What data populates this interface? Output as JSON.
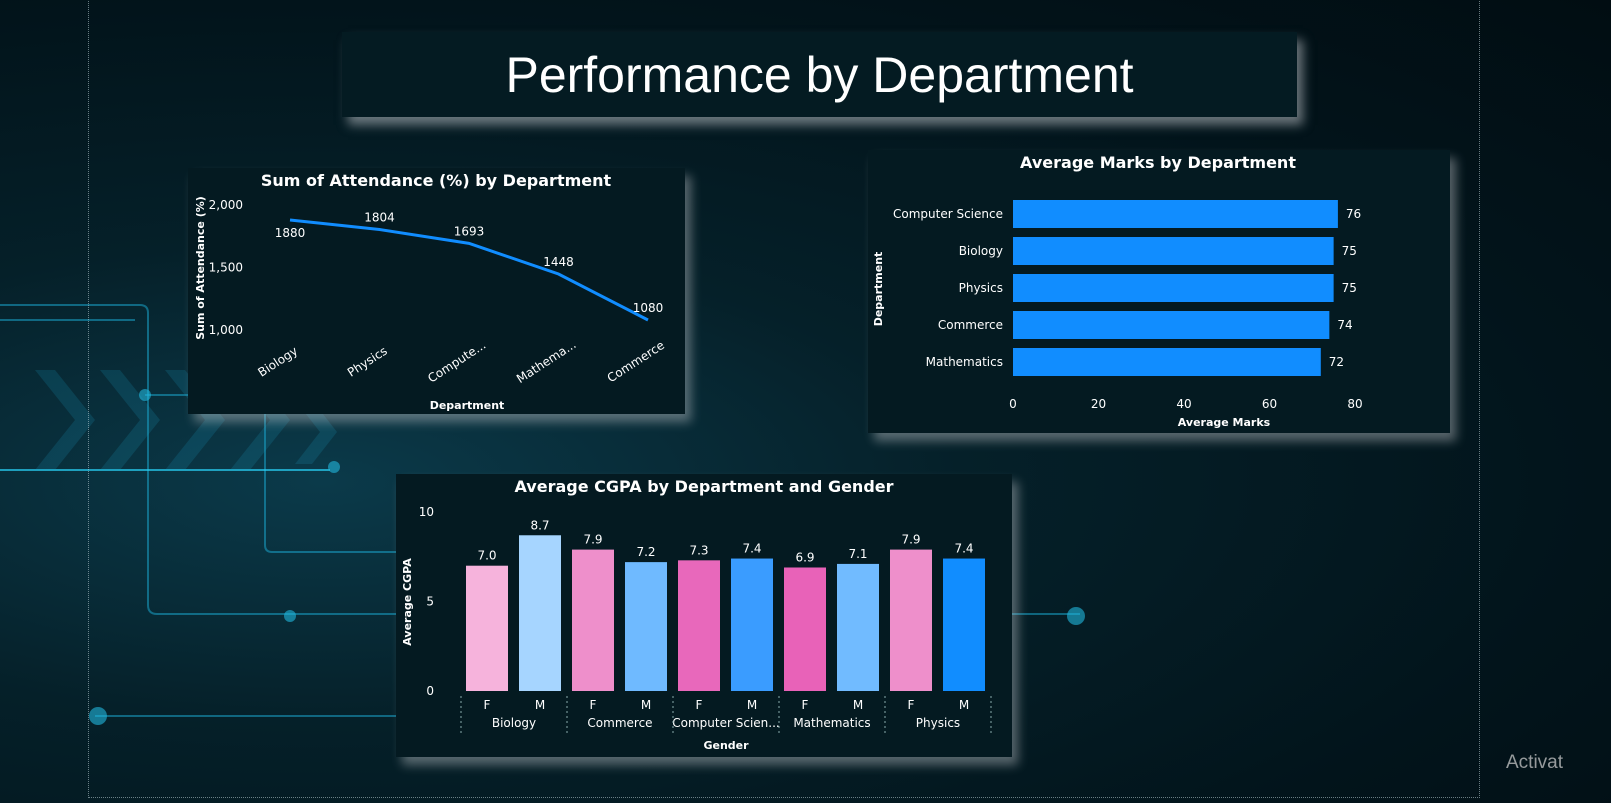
{
  "page": {
    "title": "Performance by Department",
    "watermark": "Activat"
  },
  "chart_data": [
    {
      "type": "line",
      "title": "Sum of Attendance (%) by Department",
      "xlabel": "Department",
      "ylabel": "Sum of Attendance (%)",
      "categories": [
        "Biology",
        "Physics",
        "Compute...",
        "Mathema...",
        "Commerce"
      ],
      "values": [
        1880,
        1804,
        1693,
        1448,
        1080
      ],
      "ylim": [
        1000,
        2000
      ],
      "yticks": [
        "1,000",
        "1,500",
        "2,000"
      ],
      "color": "#118dff"
    },
    {
      "type": "bar",
      "orientation": "horizontal",
      "title": "Average Marks by Department",
      "xlabel": "Average Marks",
      "ylabel": "Department",
      "categories": [
        "Computer Science",
        "Biology",
        "Physics",
        "Commerce",
        "Mathematics"
      ],
      "values": [
        76,
        75,
        75,
        74,
        72
      ],
      "xlim": [
        0,
        80
      ],
      "xticks": [
        "0",
        "20",
        "40",
        "60",
        "80"
      ],
      "color": "#118dff"
    },
    {
      "type": "bar",
      "title": "Average CGPA by Department and Gender",
      "xlabel": "Gender",
      "ylabel": "Average CGPA",
      "ylim": [
        0,
        10
      ],
      "yticks": [
        "0",
        "5",
        "10"
      ],
      "groups": [
        {
          "name": "Biology",
          "bars": [
            {
              "gender": "F",
              "value": 7.0,
              "label": "7.0",
              "color": "#f6b3dc"
            },
            {
              "gender": "M",
              "value": 8.7,
              "label": "8.7",
              "color": "#a6d5ff"
            }
          ]
        },
        {
          "name": "Commerce",
          "bars": [
            {
              "gender": "F",
              "value": 7.9,
              "label": "7.9",
              "color": "#ee8fcb"
            },
            {
              "gender": "M",
              "value": 7.2,
              "label": "7.2",
              "color": "#6fbaff"
            }
          ]
        },
        {
          "name": "Computer Scien...",
          "bars": [
            {
              "gender": "F",
              "value": 7.3,
              "label": "7.3",
              "color": "#e868bb"
            },
            {
              "gender": "M",
              "value": 7.4,
              "label": "7.4",
              "color": "#3a9cff"
            }
          ]
        },
        {
          "name": "Mathematics",
          "bars": [
            {
              "gender": "F",
              "value": 6.9,
              "label": "6.9",
              "color": "#e862b8"
            },
            {
              "gender": "M",
              "value": 7.1,
              "label": "7.1",
              "color": "#71bbff"
            }
          ]
        },
        {
          "name": "Physics",
          "bars": [
            {
              "gender": "F",
              "value": 7.9,
              "label": "7.9",
              "color": "#ee8fcb"
            },
            {
              "gender": "M",
              "value": 7.4,
              "label": "7.4",
              "color": "#118dff"
            }
          ]
        }
      ]
    }
  ]
}
